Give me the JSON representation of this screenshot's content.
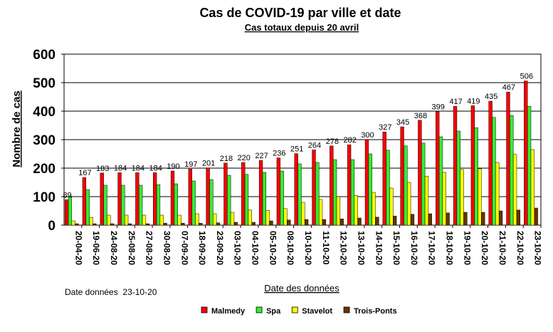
{
  "chart_data": {
    "type": "bar",
    "title": "Cas de COVID-19 par ville et date",
    "subtitle": "Cas totaux depuis 20 avril",
    "xlabel": "Date des données",
    "ylabel": "Nombre de cas",
    "note": "Date données  23-10-20",
    "ylim": [
      0,
      600
    ],
    "yticks": [
      "0",
      "100",
      "200",
      "300",
      "400",
      "500",
      "600"
    ],
    "grid": true,
    "legend_position": "bottom",
    "categories": [
      "20-04-20",
      "19-06-20",
      "24-08-20",
      "25-08-20",
      "27-08-20",
      "30-08-20",
      "07-09-20",
      "18-09-20",
      "23-09-20",
      "03-10-20",
      "04-10-20",
      "05-10-20",
      "08-10-20",
      "10-10-20",
      "11-10-20",
      "12-10-20",
      "13-10-20",
      "14-10-20",
      "15-10-20",
      "16-10-20",
      "17-10-20",
      "18-10-20",
      "19-10-20",
      "20-10-20",
      "21-10-20",
      "22-10-20",
      "23-10-20"
    ],
    "series": [
      {
        "name": "Malmedy",
        "color": "#ff0000",
        "labeled": true,
        "values": [
          89,
          167,
          183,
          184,
          184,
          184,
          190,
          197,
          201,
          218,
          220,
          227,
          236,
          251,
          264,
          278,
          282,
          300,
          327,
          345,
          368,
          399,
          417,
          419,
          435,
          467,
          506
        ],
        "labels": [
          "89",
          "167",
          "183",
          "184",
          "184",
          "184",
          "190",
          "197",
          "201",
          "218",
          "220",
          "227",
          "236",
          "251",
          "264",
          "278",
          "282",
          "300",
          "327",
          "345",
          "368",
          "399",
          "417",
          "419",
          "435",
          "467",
          "506"
        ]
      },
      {
        "name": "Spa",
        "color": "#33ee33",
        "labeled": false,
        "values": [
          98,
          125,
          140,
          140,
          140,
          142,
          145,
          155,
          160,
          175,
          178,
          185,
          190,
          215,
          220,
          230,
          230,
          250,
          263,
          278,
          288,
          310,
          330,
          342,
          378,
          385,
          417
        ]
      },
      {
        "name": "Stavelot",
        "color": "#ffff00",
        "labeled": false,
        "values": [
          15,
          27,
          35,
          35,
          35,
          35,
          35,
          40,
          40,
          45,
          53,
          52,
          58,
          80,
          90,
          100,
          104,
          115,
          130,
          150,
          172,
          185,
          195,
          198,
          220,
          248,
          265
        ]
      },
      {
        "name": "Trois-Ponts",
        "color": "#663300",
        "labeled": false,
        "values": [
          5,
          5,
          5,
          5,
          5,
          7,
          7,
          7,
          8,
          10,
          10,
          15,
          18,
          20,
          20,
          22,
          25,
          28,
          32,
          38,
          40,
          43,
          45,
          45,
          50,
          53,
          60
        ]
      }
    ]
  }
}
